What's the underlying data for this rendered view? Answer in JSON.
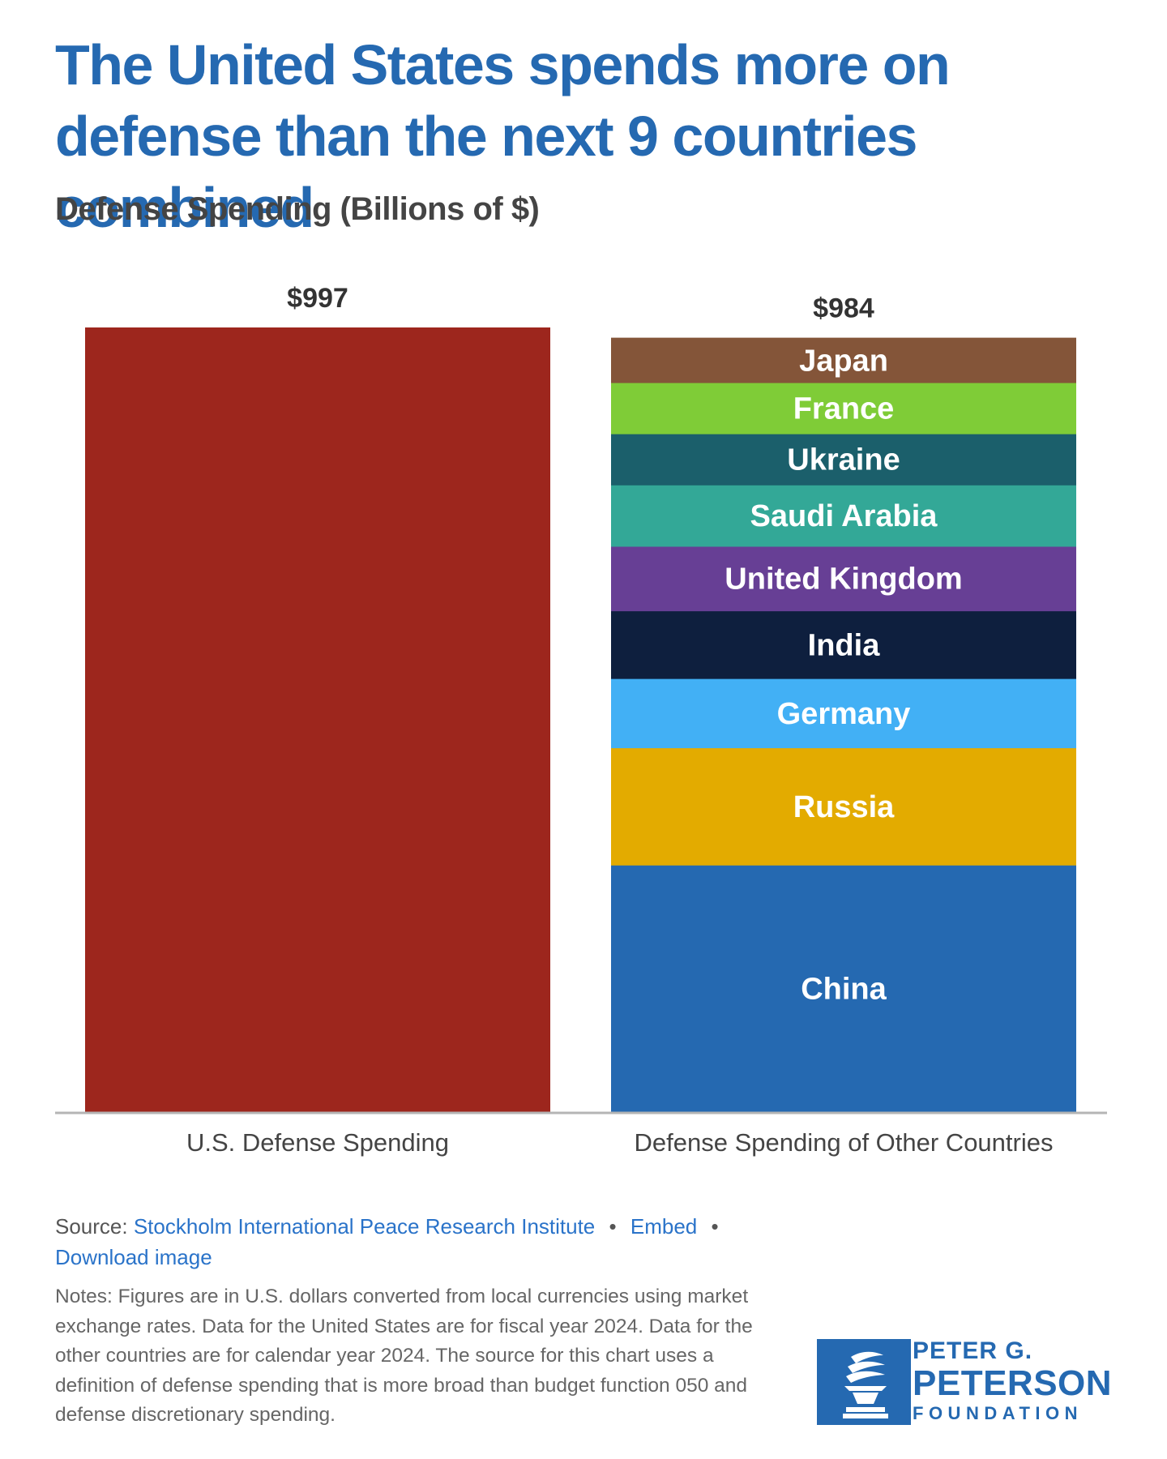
{
  "title": "The United States spends more on defense than the next 9 countries combined",
  "subtitle": "Defense Spending (Billions of $)",
  "chart_data": {
    "type": "bar",
    "stacked": true,
    "categories": [
      "U.S. Defense Spending",
      "Defense Spending of Other Countries"
    ],
    "totals": [
      997,
      984
    ],
    "total_labels": [
      "$997",
      "$984"
    ],
    "ylim": [
      0,
      997
    ],
    "grid": false,
    "series": [
      {
        "name": "United States",
        "values": [
          997,
          0
        ],
        "color": "#9d261d",
        "label": ""
      },
      {
        "name": "China",
        "values": [
          0,
          314
        ],
        "color": "#2569b1",
        "label": "China"
      },
      {
        "name": "Russia",
        "values": [
          0,
          149
        ],
        "color": "#e3ab00",
        "label": "Russia"
      },
      {
        "name": "Germany",
        "values": [
          0,
          88
        ],
        "color": "#42b0f5",
        "label": "Germany"
      },
      {
        "name": "India",
        "values": [
          0,
          86
        ],
        "color": "#0e1f3e",
        "label": "India"
      },
      {
        "name": "United Kingdom",
        "values": [
          0,
          82
        ],
        "color": "#673f95",
        "label": "United Kingdom"
      },
      {
        "name": "Saudi Arabia",
        "values": [
          0,
          78
        ],
        "color": "#33a897",
        "label": "Saudi Arabia"
      },
      {
        "name": "Ukraine",
        "values": [
          0,
          65
        ],
        "color": "#1b5f6b",
        "label": "Ukraine"
      },
      {
        "name": "France",
        "values": [
          0,
          65
        ],
        "color": "#7fcc37",
        "label": "France"
      },
      {
        "name": "Japan",
        "values": [
          0,
          57
        ],
        "color": "#845539",
        "label": "Japan"
      }
    ]
  },
  "source": {
    "prefix": "Source:",
    "link_text": "Stockholm International Peace Research Institute",
    "embed_text": "Embed",
    "download_text": "Download image",
    "separator": "•"
  },
  "notes": "Notes: Figures are in U.S. dollars converted from local currencies using market exchange rates. Data for the United States are for fiscal year 2024. Data for the other countries are for calendar year 2024. The source for this chart uses a definition of defense spending that is more broad than budget function 050 and defense discretionary spending.",
  "logo": {
    "line1": "PETER G.",
    "line2": "PETERSON",
    "line3": "FOUNDATION"
  }
}
